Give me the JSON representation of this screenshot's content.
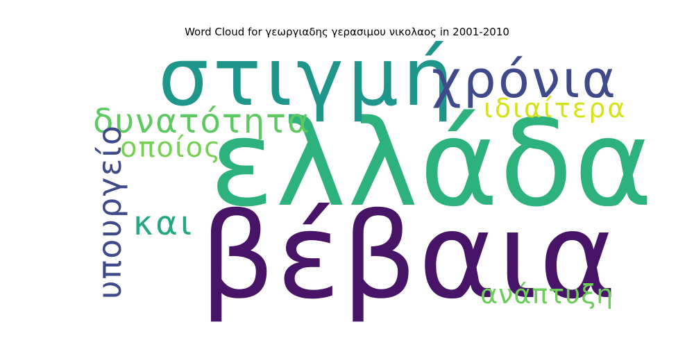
{
  "chart_data": {
    "type": "wordcloud",
    "title": "Word Cloud for γεωργιαδης γερασιμου νικολαος in 2001-2010",
    "words": [
      {
        "text": "ελλάδα",
        "weight": 1.0,
        "color": "#2db27d"
      },
      {
        "text": "βέβαια",
        "weight": 0.98,
        "color": "#481467"
      },
      {
        "text": "στιγμή",
        "weight": 0.67,
        "color": "#1f968b"
      },
      {
        "text": "χρόνια",
        "weight": 0.43,
        "color": "#3e4a89"
      },
      {
        "text": "δυνατότητα",
        "weight": 0.28,
        "color": "#5ec962"
      },
      {
        "text": "υπουργείο",
        "weight": 0.27,
        "color": "#3e4a89"
      },
      {
        "text": "και",
        "weight": 0.28,
        "color": "#26a784"
      },
      {
        "text": "οποίος",
        "weight": 0.23,
        "color": "#75d054"
      },
      {
        "text": "ιδιαίτερα",
        "weight": 0.22,
        "color": "#d5e21a"
      },
      {
        "text": "ανάπτυξη",
        "weight": 0.22,
        "color": "#6ccd5a"
      }
    ]
  }
}
